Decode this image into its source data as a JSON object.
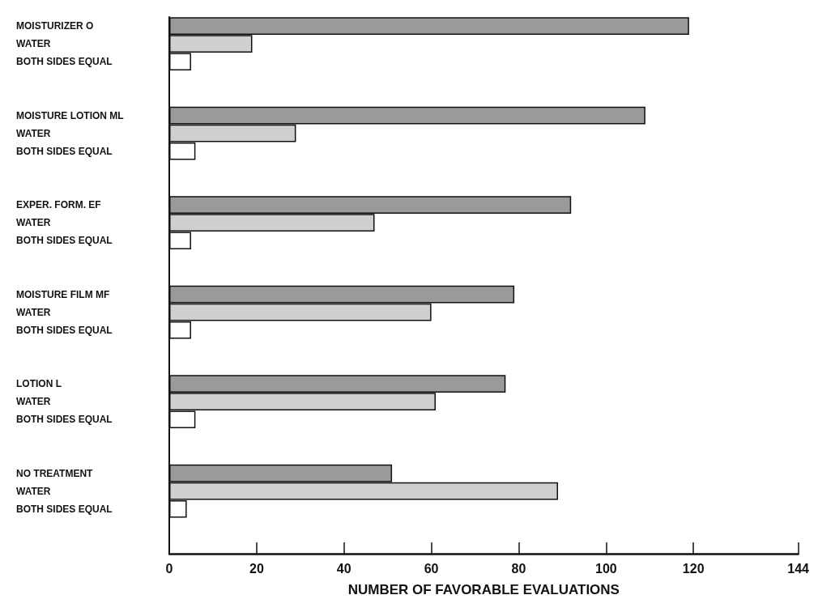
{
  "chart_data": {
    "type": "bar",
    "orientation": "horizontal",
    "xlabel": "NUMBER OF FAVORABLE EVALUATIONS",
    "categories": [
      "MOISTURIZER O",
      "WATER",
      "BOTH SIDES EQUAL",
      null,
      null,
      "MOISTURE LOTION ML",
      "WATER",
      "BOTH SIDES EQUAL",
      null,
      null,
      "EXPER. FORM. EF",
      "WATER",
      "BOTH SIDES EQUAL",
      null,
      null,
      "MOISTURE FILM MF",
      "WATER",
      "BOTH SIDES EQUAL",
      null,
      null,
      "LOTION L",
      "WATER",
      "BOTH SIDES EQUAL",
      null,
      null,
      "NO TREATMENT",
      "WATER",
      "BOTH SIDES EQUAL",
      null,
      null
    ],
    "values": [
      119,
      19,
      5,
      null,
      null,
      109,
      29,
      6,
      null,
      null,
      92,
      47,
      5,
      null,
      null,
      79,
      60,
      5,
      null,
      null,
      77,
      61,
      6,
      null,
      null,
      51,
      89,
      4,
      null,
      null
    ],
    "colors": [
      "#9a9a9a",
      "#cfcfcf",
      "#ffffff",
      null,
      null,
      "#9a9a9a",
      "#cfcfcf",
      "#ffffff",
      null,
      null,
      "#9a9a9a",
      "#cfcfcf",
      "#ffffff",
      null,
      null,
      "#9a9a9a",
      "#cfcfcf",
      "#ffffff",
      null,
      null,
      "#9a9a9a",
      "#cfcfcf",
      "#ffffff",
      null,
      null,
      "#9a9a9a",
      "#cfcfcf",
      "#ffffff",
      null,
      null
    ],
    "xlim": [
      0,
      144
    ],
    "xticks": [
      0,
      20,
      40,
      60,
      80,
      100,
      120,
      144
    ],
    "grid": false
  }
}
